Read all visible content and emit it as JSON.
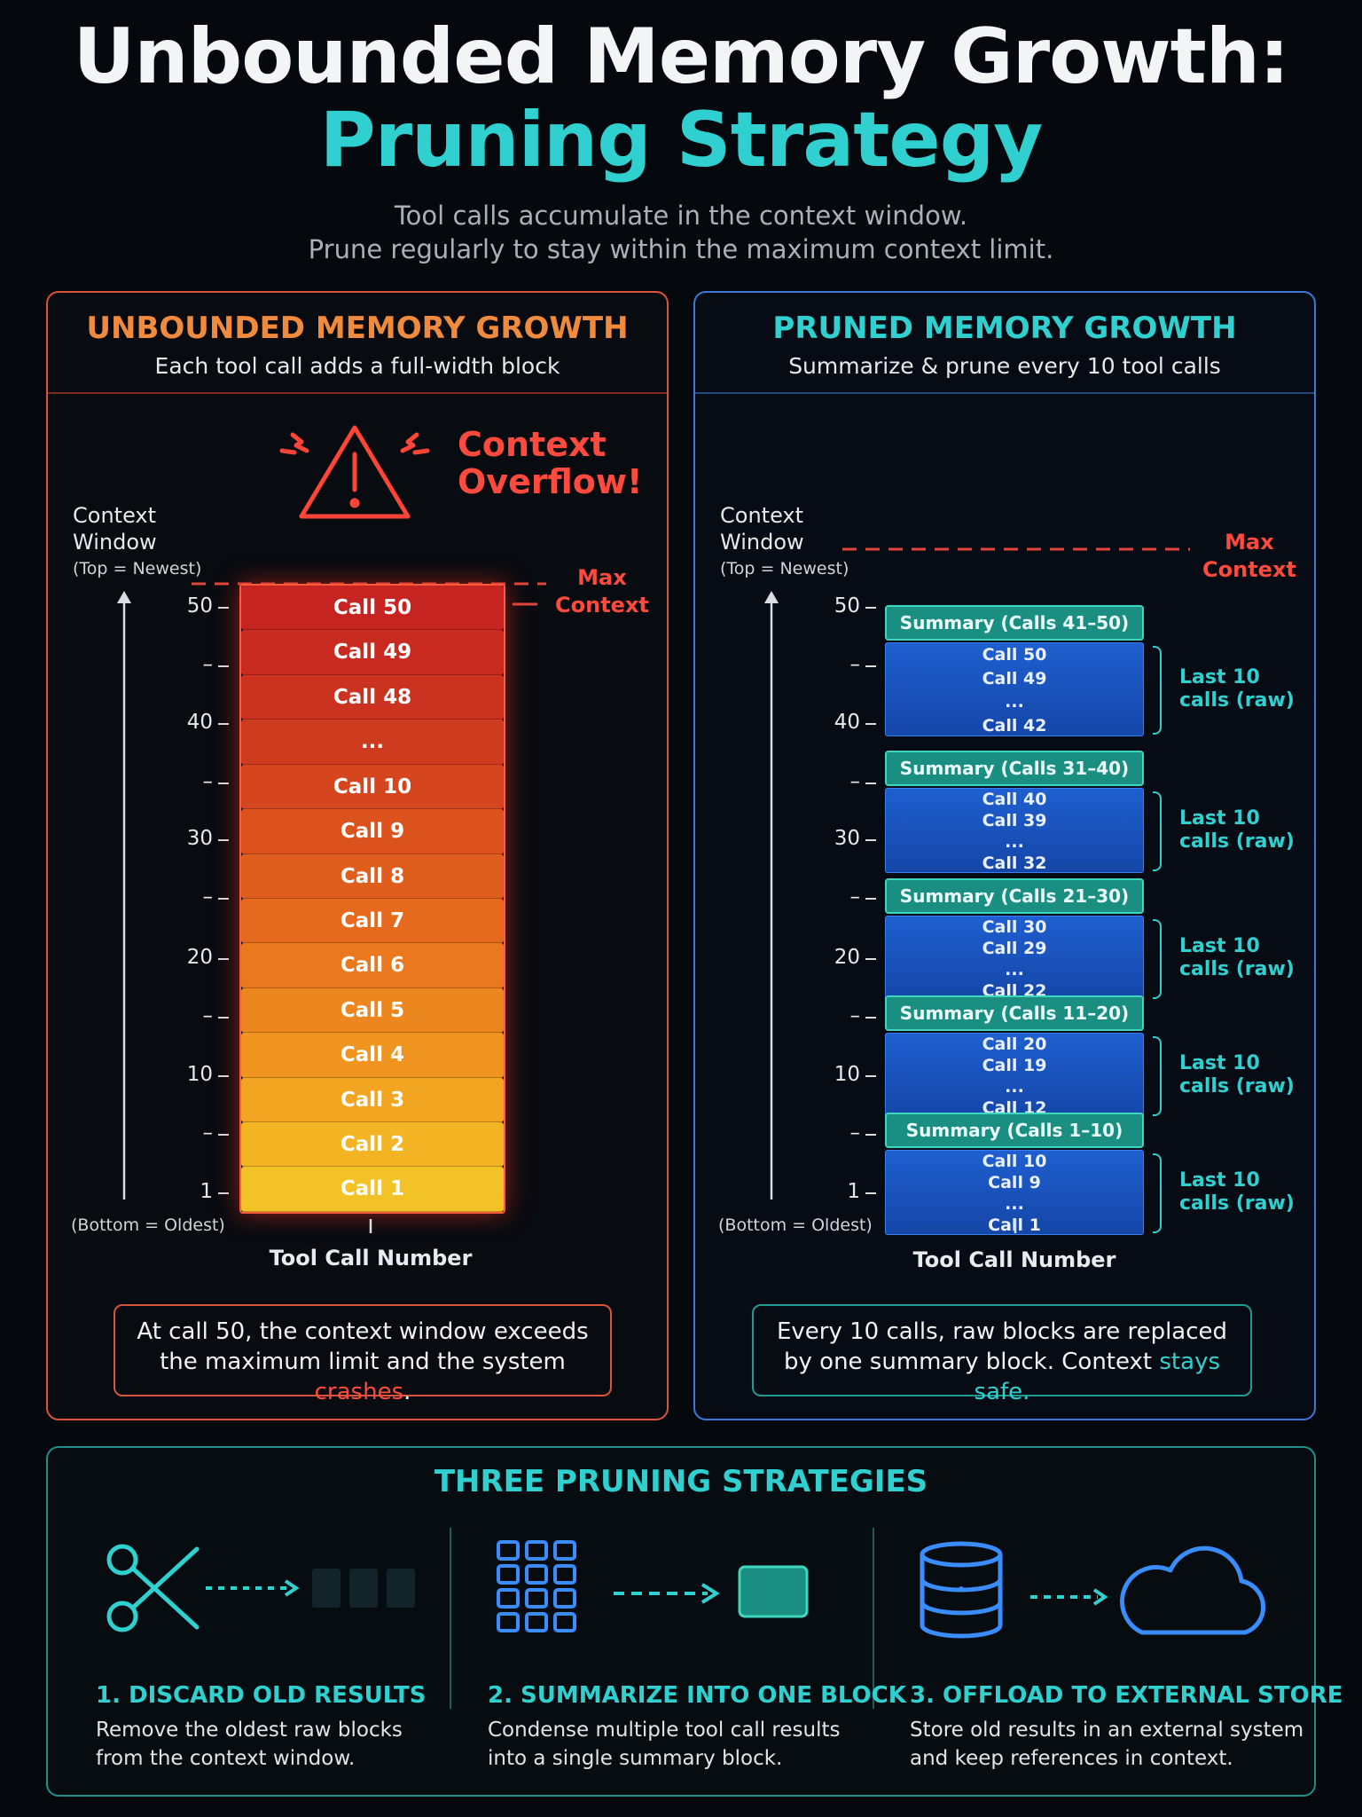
{
  "header": {
    "title_line1": "Unbounded Memory Growth:",
    "title_line2": "Pruning Strategy",
    "subtitle_line1": "Tool calls accumulate in the context window.",
    "subtitle_line2": "Prune regularly to stay within the maximum context limit."
  },
  "left_panel": {
    "title": "UNBOUNDED MEMORY GROWTH",
    "subtitle": "Each tool call adds a full-width block",
    "overflow_label_1": "Context",
    "overflow_label_2": "Overflow!",
    "axis_label_1": "Context",
    "axis_label_2": "Window",
    "axis_top": "(Top = Newest)",
    "axis_bottom": "(Bottom = Oldest)",
    "max_label_1": "Max",
    "max_label_2": "Context",
    "x_axis_label": "Tool Call Number",
    "ticks": [
      "50",
      "–",
      "40",
      "–",
      "30",
      "–",
      "20",
      "–",
      "10",
      "–",
      "1"
    ],
    "blocks": [
      "Call 50",
      "Call 49",
      "Call 48",
      "...",
      "Call 10",
      "Call 9",
      "Call 8",
      "Call 7",
      "Call 6",
      "Call 5",
      "Call 4",
      "Call 3",
      "Call 2",
      "Call 1"
    ],
    "block_colors": [
      "#c62421",
      "#c82a20",
      "#cb321f",
      "#cf3b1f",
      "#d5461e",
      "#db521d",
      "#e05e1d",
      "#e56a1d",
      "#e9781e",
      "#ec861e",
      "#ef951f",
      "#f1a520",
      "#f3b523",
      "#f3c227"
    ],
    "note_1": "At call 50, the context window exceeds",
    "note_2": "the maximum limit and the system",
    "note_highlight": "crashes",
    "note_end": "."
  },
  "right_panel": {
    "title": "PRUNED MEMORY GROWTH",
    "subtitle": "Summarize & prune every 10 tool calls",
    "axis_label_1": "Context",
    "axis_label_2": "Window",
    "axis_top": "(Top = Newest)",
    "axis_bottom": "(Bottom = Oldest)",
    "max_label_1": "Max",
    "max_label_2": "Context",
    "x_axis_label": "Tool Call Number",
    "ticks": [
      "50",
      "–",
      "40",
      "–",
      "30",
      "–",
      "20",
      "–",
      "10",
      "–",
      "1"
    ],
    "groups": [
      {
        "summary": "Summary (Calls 41–50)",
        "calls": [
          "Call 50",
          "Call 49",
          "...",
          "Call 42"
        ],
        "brace_1": "Last 10",
        "brace_2": "calls (raw)"
      },
      {
        "summary": "Summary (Calls 31–40)",
        "calls": [
          "Call 40",
          "Call 39",
          "...",
          "Call 32"
        ],
        "brace_1": "Last 10",
        "brace_2": "calls (raw)"
      },
      {
        "summary": "Summary (Calls 21–30)",
        "calls": [
          "Call 30",
          "Call 29",
          "...",
          "Call 22"
        ],
        "brace_1": "Last 10",
        "brace_2": "calls (raw)"
      },
      {
        "summary": "Summary (Calls 11–20)",
        "calls": [
          "Call 20",
          "Call 19",
          "...",
          "Call 12"
        ],
        "brace_1": "Last 10",
        "brace_2": "calls (raw)"
      },
      {
        "summary": "Summary (Calls 1–10)",
        "calls": [
          "Call 10",
          "Call 9",
          "...",
          "Call 1"
        ],
        "brace_1": "Last 10",
        "brace_2": "calls (raw)"
      }
    ],
    "note_1": "Every 10 calls, raw blocks are replaced",
    "note_2": "by one summary block. Context",
    "note_highlight": "stays safe.",
    "note_end": ""
  },
  "strategies": {
    "title": "THREE PRUNING STRATEGIES",
    "items": [
      {
        "title": "1. DISCARD OLD RESULTS",
        "desc_1": "Remove the oldest raw blocks",
        "desc_2": "from the context window.",
        "icon": "scissors-icon"
      },
      {
        "title": "2. SUMMARIZE INTO ONE BLOCK",
        "desc_1": "Condense multiple tool call results",
        "desc_2": "into a single summary block.",
        "icon": "grid-icon"
      },
      {
        "title": "3. OFFLOAD TO EXTERNAL STORE",
        "desc_1": "Store old results in an external system",
        "desc_2": "and keep references in context.",
        "icon": "database-icon"
      }
    ]
  },
  "colors": {
    "accent_teal": "#2fd0cf",
    "danger": "#ff4a3d",
    "orange": "#f08a3c",
    "blue": "#3a79d8"
  }
}
